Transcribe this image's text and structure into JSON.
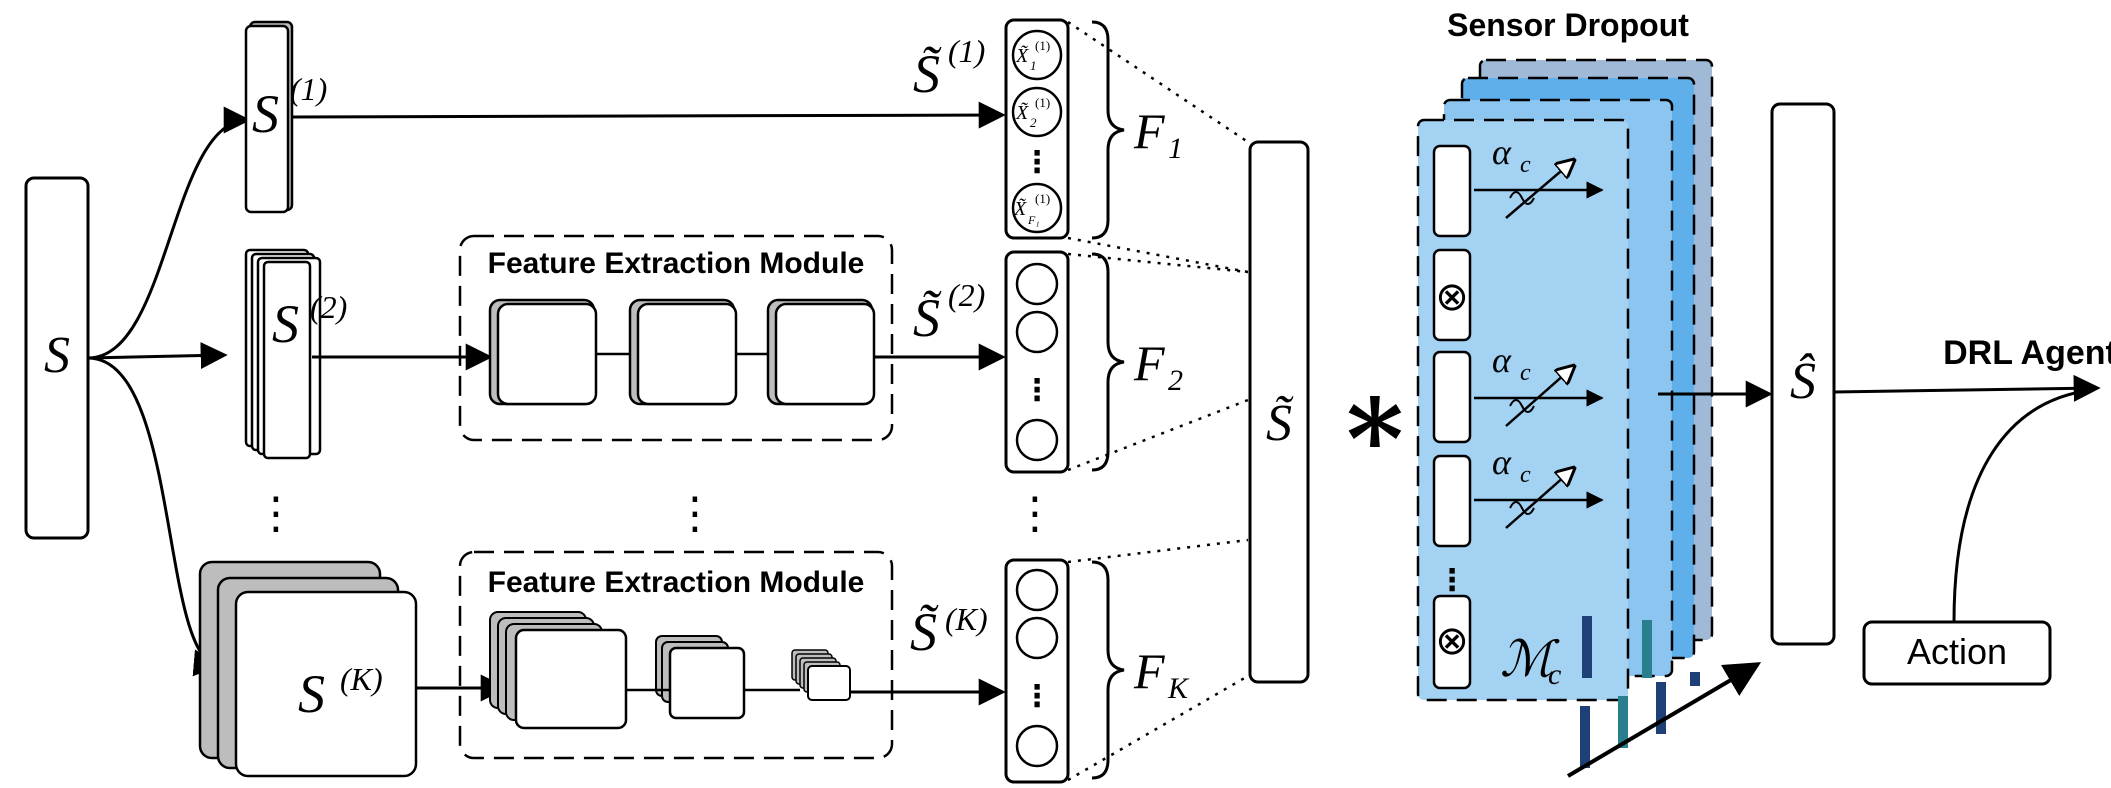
{
  "input": {
    "label": "S"
  },
  "branches": [
    {
      "label": "S",
      "superscript": "(1)",
      "tilde_label": "S̃",
      "tilde_sup": "(1)",
      "group": "F",
      "group_sub": "1"
    },
    {
      "label": "S",
      "superscript": "(2)",
      "tilde_label": "S̃",
      "tilde_sup": "(2)",
      "group": "F",
      "group_sub": "2"
    },
    {
      "label": "S",
      "superscript": "(K)",
      "tilde_label": "S̃",
      "tilde_sup": "(K)",
      "group": "F",
      "group_sub": "K"
    }
  ],
  "feature_nodes_branch1": [
    {
      "base": "X̃",
      "sub": "1",
      "sup": "(1)"
    },
    {
      "base": "X̃",
      "sub": "2",
      "sup": "(1)"
    },
    {
      "base": "X̃",
      "sub": "F₁",
      "sup": "(1)"
    }
  ],
  "fem": {
    "title_top": "Feature Extraction Module",
    "title_bottom": "Feature Extraction Module"
  },
  "concat": {
    "label": "S̃"
  },
  "op_symbol": "∗",
  "dropout": {
    "title": "Sensor Dropout",
    "alpha": "α",
    "alpha_sub": "c",
    "mask_label": "ℳ",
    "mask_sub": "c",
    "otimes": "⊗"
  },
  "output": {
    "label": "Ŝ"
  },
  "agent": {
    "title": "DRL Agent",
    "action_label": "Action"
  },
  "ellipsis": "⋮",
  "colors": {
    "stroke": "#000000",
    "panel_front": "#a4d2f3",
    "panel_back1": "#8cc6f0",
    "panel_back2": "#5fb0ea",
    "panel_back3": "#9fb9d6",
    "block_shade": "#bdbdbd",
    "bar_dark": "#1f3f77",
    "bar_teal": "#2a7f8f"
  }
}
